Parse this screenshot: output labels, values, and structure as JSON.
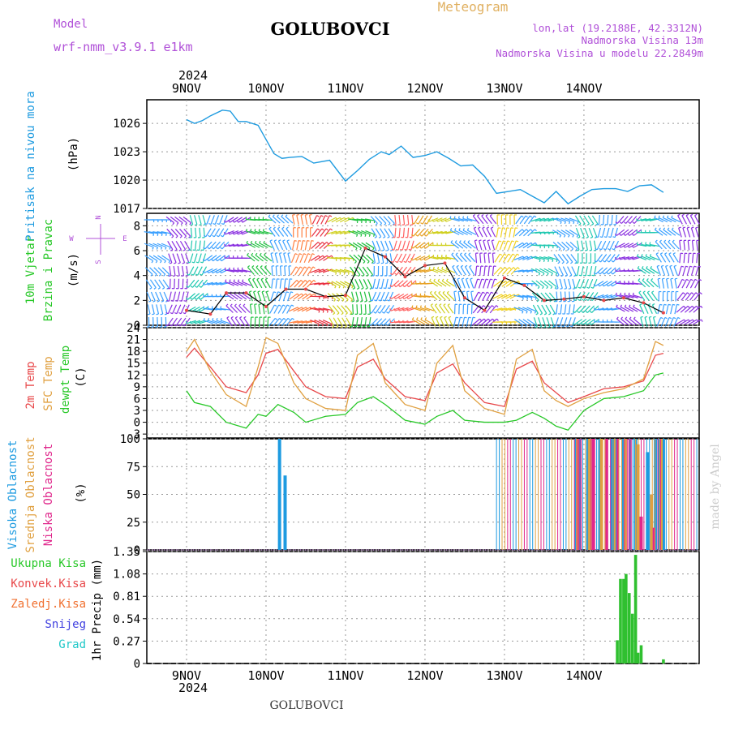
{
  "header": {
    "model_label": "Model",
    "model_name": "wrf-nmm_v3.9.1 e1km",
    "location": "GOLUBOVCI",
    "product": "Meteogram",
    "coords": "lon,lat (19.2188E, 42.3312N)",
    "elevation": "Nadmorska Visina 13m",
    "model_elevation": "Nadmorska Visina u modelu 22.2849m",
    "year_top": "2024",
    "year_bottom": "2024",
    "footer": "GOLUBOVCI",
    "credit": "made by Angel"
  },
  "colors": {
    "pressure": "#1e9be0",
    "temp2m": "#e8484a",
    "sfc": "#e0a040",
    "dew": "#28c828",
    "hi_cloud": "#1e9be0",
    "mid_cloud": "#e0a040",
    "low_cloud": "#e0288c",
    "precip": "#30c030",
    "model": "#b050d8",
    "product": "#e0b060",
    "grid": "#999999"
  },
  "day_labels": [
    "9NOV",
    "10NOV",
    "11NOV",
    "12NOV",
    "13NOV",
    "14NOV"
  ],
  "chart_data": [
    {
      "type": "line",
      "panel": "pressure",
      "ylabel": "Pritisak na nivou mora",
      "unit": "(hPa)",
      "ylim": [
        1017,
        1028.5
      ],
      "yticks": [
        1017,
        1020,
        1023,
        1026
      ],
      "x": [
        0,
        0.1,
        0.2,
        0.3,
        0.45,
        0.55,
        0.65,
        0.75,
        0.9,
        1.0,
        1.1,
        1.2,
        1.3,
        1.45,
        1.6,
        1.8,
        2.0,
        2.15,
        2.3,
        2.45,
        2.55,
        2.7,
        2.85,
        3.0,
        3.15,
        3.3,
        3.45,
        3.6,
        3.75,
        3.9,
        4.05,
        4.2,
        4.35,
        4.5,
        4.65,
        4.8,
        4.95,
        5.1,
        5.25,
        5.4,
        5.55,
        5.7,
        5.85,
        6.0
      ],
      "series": [
        {
          "values": [
            1026.4,
            1026.0,
            1026.3,
            1026.8,
            1027.4,
            1027.3,
            1026.2,
            1026.2,
            1025.8,
            1024.3,
            1022.8,
            1022.3,
            1022.4,
            1022.5,
            1021.8,
            1022.1,
            1019.9,
            1021.0,
            1022.2,
            1023.0,
            1022.7,
            1023.6,
            1022.4,
            1022.6,
            1023.0,
            1022.3,
            1021.5,
            1021.6,
            1020.4,
            1018.6,
            1018.8,
            1019.0,
            1018.3,
            1017.6,
            1018.8,
            1017.5,
            1018.3,
            1019.0,
            1019.1,
            1019.1,
            1018.8,
            1019.4,
            1019.5,
            1018.7
          ]
        }
      ]
    },
    {
      "type": "line",
      "panel": "wind",
      "ylabel": "10m Vjetar Brzina i Pravac",
      "unit": "(m/s)",
      "compass": [
        "S",
        "W",
        "E",
        "N"
      ],
      "ylim": [
        0,
        9
      ],
      "yticks": [
        0,
        2,
        4,
        6,
        8
      ],
      "x": [
        0,
        0.3,
        0.5,
        0.75,
        1.0,
        1.25,
        1.5,
        1.75,
        2.0,
        2.25,
        2.5,
        2.75,
        3.0,
        3.25,
        3.5,
        3.75,
        4.0,
        4.25,
        4.5,
        4.75,
        5.0,
        5.25,
        5.5,
        5.75,
        6.0
      ],
      "series": [
        {
          "values": [
            1.2,
            0.9,
            2.6,
            2.6,
            1.5,
            2.9,
            2.9,
            2.3,
            2.4,
            6.2,
            5.5,
            3.9,
            4.8,
            5.0,
            2.2,
            1.2,
            3.8,
            3.2,
            2.0,
            2.1,
            2.3,
            2.0,
            2.2,
            1.8,
            1.0
          ]
        }
      ]
    },
    {
      "type": "line",
      "panel": "temperature",
      "ylabel": "2m Temp / SFC Temp / dewpt Temp",
      "unit": "(C)",
      "ylim": [
        -4,
        24
      ],
      "yticks": [
        -3,
        0,
        3,
        6,
        9,
        12,
        15,
        18,
        21,
        24
      ],
      "x": [
        0,
        0.1,
        0.3,
        0.5,
        0.75,
        0.9,
        1.0,
        1.15,
        1.35,
        1.5,
        1.75,
        2.0,
        2.15,
        2.35,
        2.5,
        2.75,
        3.0,
        3.15,
        3.35,
        3.5,
        3.75,
        4.0,
        4.15,
        4.35,
        4.5,
        4.65,
        4.8,
        5.0,
        5.25,
        5.5,
        5.75,
        5.9,
        6.0
      ],
      "series": [
        {
          "name": "2m Temp",
          "values": [
            16.5,
            18.8,
            14.0,
            9.0,
            7.5,
            12.0,
            17.5,
            18.5,
            13.0,
            9.0,
            6.5,
            6.0,
            14.0,
            16.0,
            11.0,
            6.5,
            5.5,
            12.5,
            14.8,
            10.0,
            5.0,
            4.0,
            13.5,
            15.5,
            10.0,
            7.5,
            5.0,
            6.5,
            8.5,
            9.0,
            10.5,
            17.0,
            17.5
          ]
        },
        {
          "name": "SFC Temp",
          "values": [
            18.0,
            21.0,
            13.0,
            7.0,
            4.0,
            14.0,
            21.5,
            20.0,
            10.0,
            6.0,
            3.5,
            3.0,
            17.0,
            20.0,
            10.0,
            4.5,
            3.0,
            15.0,
            19.5,
            8.0,
            3.5,
            2.0,
            16.0,
            18.5,
            8.0,
            5.5,
            4.0,
            6.0,
            7.5,
            8.5,
            11.0,
            20.5,
            19.5
          ]
        },
        {
          "name": "dewpt Temp",
          "values": [
            8.0,
            5.0,
            4.0,
            0.0,
            -1.5,
            2.0,
            1.5,
            4.5,
            2.5,
            0.0,
            1.5,
            2.0,
            5.0,
            6.5,
            4.5,
            0.5,
            -0.5,
            1.5,
            3.0,
            0.5,
            0.0,
            0.0,
            0.5,
            2.5,
            1.0,
            -1.0,
            -2.0,
            3.0,
            6.0,
            6.5,
            8.0,
            12.0,
            12.5
          ]
        }
      ]
    },
    {
      "type": "bar",
      "panel": "clouds",
      "ylabel": "Visoka Oblacnost / Srednja Oblacnost / Niska Oblacnost",
      "unit": "(%)",
      "ylim": [
        0,
        100
      ],
      "yticks": [
        0,
        25,
        50,
        75,
        100
      ],
      "series": [
        {
          "name": "Visoka Oblacnost",
          "x": [
            1.17,
            1.24,
            4.9,
            5.05,
            5.2,
            5.35,
            5.5,
            5.65,
            5.8,
            5.9,
            5.95,
            6.0
          ],
          "values": [
            100,
            67,
            100,
            100,
            100,
            100,
            100,
            100,
            88,
            100,
            100,
            100
          ]
        },
        {
          "name": "Srednja Oblacnost",
          "x": [
            4.92,
            5.08,
            5.22,
            5.38,
            5.52,
            5.68,
            5.85,
            5.97
          ],
          "values": [
            100,
            100,
            100,
            100,
            100,
            95,
            50,
            100
          ]
        },
        {
          "name": "Niska Oblacnost",
          "x": [
            4.95,
            5.12,
            5.28,
            5.42,
            5.58,
            5.72,
            5.88
          ],
          "values": [
            100,
            100,
            100,
            100,
            100,
            30,
            20
          ]
        }
      ]
    },
    {
      "type": "bar",
      "panel": "precipitation",
      "ylabel": "1hr Precip (mm)",
      "legend": [
        "Ukupna Kisa",
        "Konvek.Kisa",
        "Zaledj.Kisa",
        "Snijeg",
        "Grad"
      ],
      "ylim": [
        0,
        1.35
      ],
      "yticks": [
        0,
        0.27,
        0.54,
        0.81,
        1.08,
        1.35
      ],
      "x": [
        5.42,
        5.46,
        5.5,
        5.53,
        5.57,
        5.61,
        5.65,
        5.68,
        5.72,
        6.0
      ],
      "values": [
        0.28,
        1.02,
        1.02,
        1.08,
        0.85,
        0.6,
        1.31,
        0.13,
        0.22,
        0.05
      ]
    }
  ]
}
